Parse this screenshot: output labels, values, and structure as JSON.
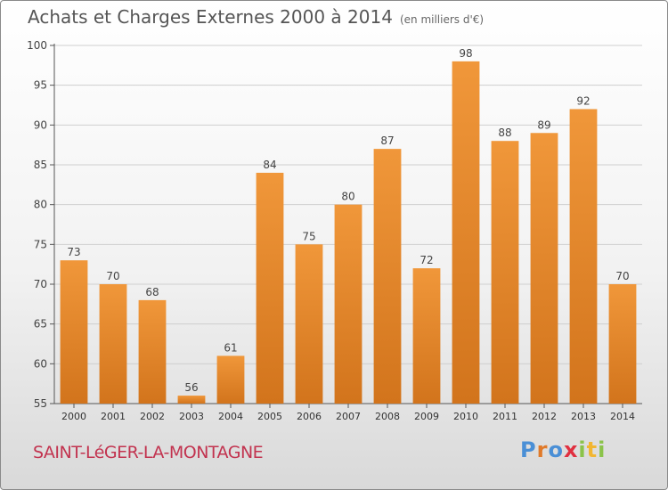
{
  "header": {
    "title": "Achats et Charges Externes 2000 à 2014",
    "unit": "(en milliers d'€)"
  },
  "footer": {
    "commune": "SAINT-LéGER-LA-MONTAGNE",
    "logo": "Proxiti",
    "logo_colors": [
      "#4a8fd6",
      "#e07a2a",
      "#4a8fd6",
      "#e03040",
      "#8bc34a",
      "#f2b632",
      "#8bc34a"
    ]
  },
  "chart_data": {
    "type": "bar",
    "categories": [
      "2000",
      "2001",
      "2002",
      "2003",
      "2004",
      "2005",
      "2006",
      "2007",
      "2008",
      "2009",
      "2010",
      "2011",
      "2012",
      "2013",
      "2014"
    ],
    "values": [
      73,
      70,
      68,
      56,
      61,
      84,
      75,
      80,
      87,
      72,
      98,
      88,
      89,
      92,
      70
    ],
    "ylim": [
      55,
      100
    ],
    "yticks": [
      55,
      60,
      65,
      70,
      75,
      80,
      85,
      90,
      95,
      100
    ],
    "grid": true,
    "bar_color": "#f0973a",
    "bar_color_dark": "#d2741c"
  }
}
